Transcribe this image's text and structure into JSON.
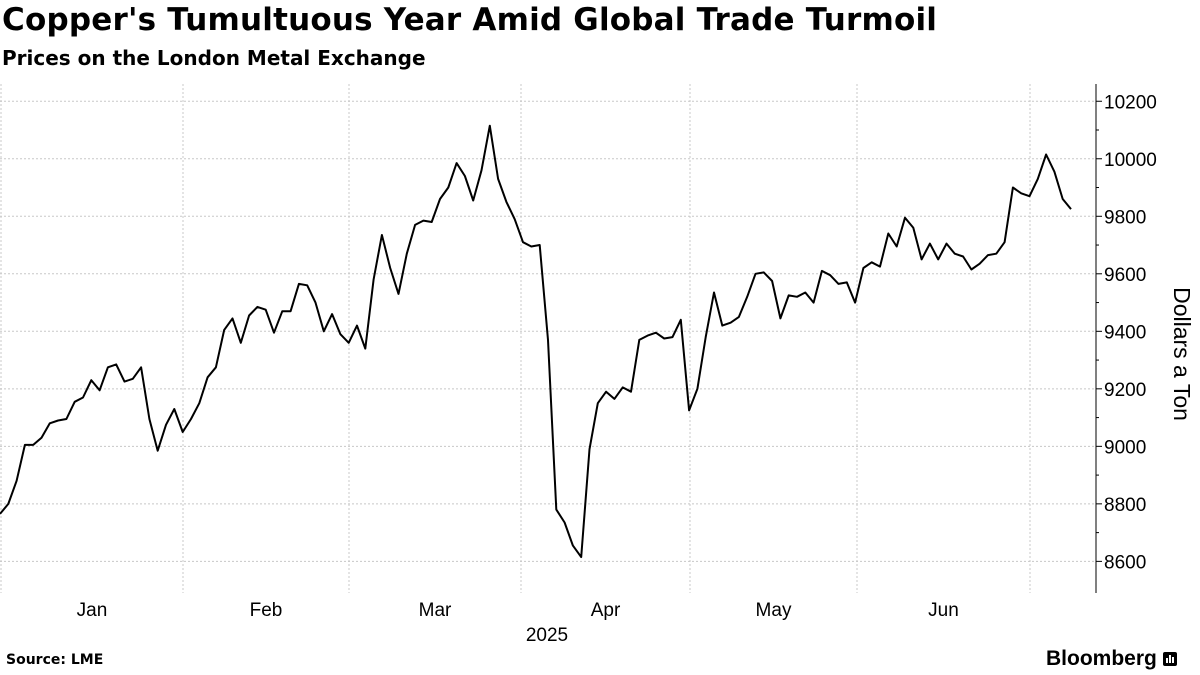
{
  "title": "Copper's Tumultuous Year Amid Global Trade Turmoil",
  "subtitle": "Prices on the London Metal Exchange",
  "source": "Source: LME",
  "brand": "Bloomberg",
  "chart_data": {
    "type": "line",
    "title": "Copper's Tumultuous Year Amid Global Trade Turmoil",
    "subtitle": "Prices on the London Metal Exchange",
    "xlabel": "2025",
    "ylabel": "Dollars a Ton",
    "ylim": [
      8490,
      10260
    ],
    "yticks": [
      8600,
      8800,
      9000,
      9200,
      9400,
      9600,
      9800,
      10000,
      10200
    ],
    "x_labels": [
      "Jan",
      "Feb",
      "Mar",
      "Apr",
      "May",
      "Jun"
    ],
    "year_label": "2025",
    "grid": true,
    "line_color": "#000000",
    "series": [
      {
        "values": [
          8765,
          8800,
          8880,
          9005,
          9005,
          9030,
          9080,
          9090,
          9095,
          9155,
          9170,
          9230,
          9195,
          9275,
          9285,
          9225,
          9235,
          9275,
          9095,
          8985,
          9075,
          9130,
          9050,
          9095,
          9150,
          9240,
          9275,
          9405,
          9445,
          9360,
          9455,
          9485,
          9475,
          9395,
          9470,
          9470,
          9565,
          9560,
          9500,
          9400,
          9460,
          9390,
          9360,
          9420,
          9340,
          9580,
          9735,
          9620,
          9530,
          9670,
          9770,
          9785,
          9780,
          9860,
          9900,
          9985,
          9940,
          9855,
          9960,
          10115,
          9930,
          9850,
          9790,
          9710,
          9695,
          9700,
          9370,
          8780,
          8735,
          8655,
          8615,
          8990,
          9150,
          9190,
          9165,
          9205,
          9190,
          9370,
          9385,
          9395,
          9375,
          9380,
          9440,
          9125,
          9200,
          9380,
          9535,
          9420,
          9430,
          9450,
          9520,
          9600,
          9605,
          9575,
          9445,
          9525,
          9520,
          9535,
          9500,
          9610,
          9595,
          9565,
          9570,
          9500,
          9620,
          9640,
          9625,
          9740,
          9695,
          9795,
          9760,
          9650,
          9705,
          9650,
          9705,
          9670,
          9660,
          9615,
          9635,
          9665,
          9670,
          9710,
          9900,
          9880,
          9870,
          9930,
          10015,
          9955,
          9860,
          9825
        ]
      }
    ]
  }
}
